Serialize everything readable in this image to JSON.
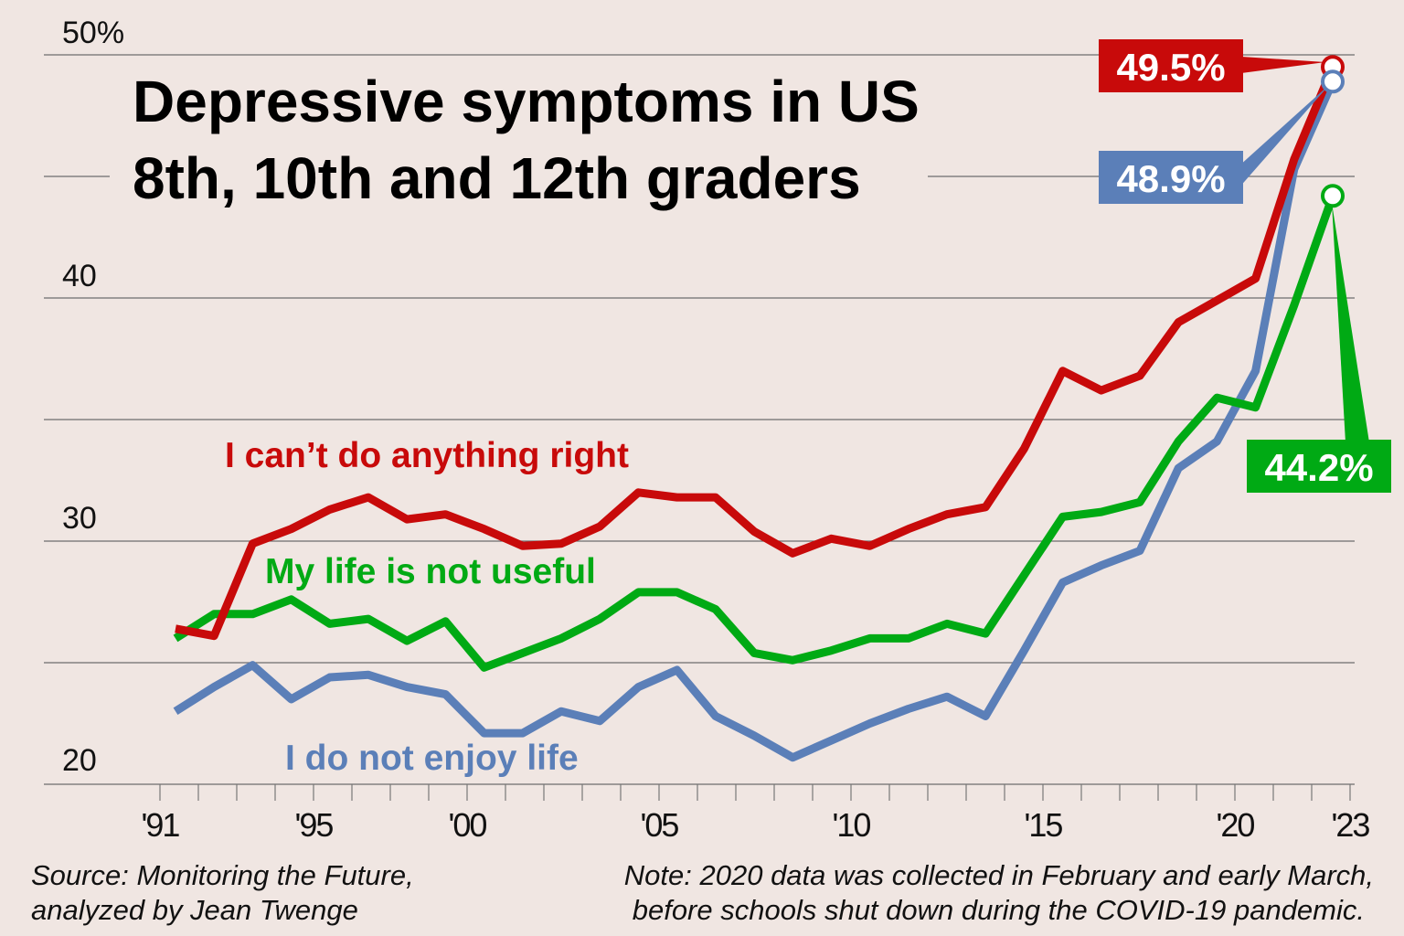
{
  "chart_data": {
    "type": "line",
    "title": "Depressive symptoms in US 8th, 10th and 12th graders",
    "title_lines": [
      "Depressive symptoms in US",
      "8th, 10th and 12th graders"
    ],
    "xlabel": "",
    "ylabel": "",
    "ylim": [
      20,
      50
    ],
    "y_ticks": [
      {
        "value": 50,
        "label": "50%"
      },
      {
        "value": 40,
        "label": "40"
      },
      {
        "value": 30,
        "label": "30"
      },
      {
        "value": 20,
        "label": "20"
      }
    ],
    "y_gridlines": [
      50,
      45,
      40,
      35,
      30,
      25,
      20
    ],
    "x_tick_labels": [
      "'91",
      "'95",
      "'00",
      "'05",
      "'10",
      "'15",
      "'20",
      "'23"
    ],
    "x": [
      1991,
      1992,
      1993,
      1994,
      1995,
      1996,
      1997,
      1998,
      1999,
      2000,
      2001,
      2002,
      2003,
      2004,
      2005,
      2006,
      2007,
      2008,
      2009,
      2010,
      2011,
      2012,
      2013,
      2014,
      2015,
      2016,
      2017,
      2018,
      2019,
      2020,
      2023
    ],
    "grid": true,
    "series": [
      {
        "name": "I can’t do anything right",
        "color": "#c80a0a",
        "values": [
          26.4,
          26.1,
          29.9,
          30.5,
          31.3,
          31.8,
          30.9,
          31.1,
          30.5,
          29.8,
          29.9,
          30.6,
          32.0,
          31.8,
          31.8,
          30.4,
          29.5,
          30.1,
          29.8,
          30.5,
          31.1,
          31.4,
          33.8,
          37.0,
          36.2,
          36.8,
          39.0,
          39.9,
          40.8,
          45.7,
          49.5
        ],
        "end_label": "49.5%"
      },
      {
        "name": "My life is not useful",
        "color": "#00aa14",
        "values": [
          26.0,
          27.0,
          27.0,
          27.6,
          26.6,
          26.8,
          25.9,
          26.7,
          24.8,
          25.4,
          26.0,
          26.8,
          27.9,
          27.9,
          27.2,
          25.4,
          25.1,
          25.5,
          26.0,
          26.0,
          26.6,
          26.2,
          28.6,
          31.0,
          31.2,
          31.6,
          34.1,
          35.9,
          35.5,
          39.7,
          44.2
        ],
        "end_label": "44.2%"
      },
      {
        "name": "I do not enjoy life",
        "color": "#5b7fb8",
        "values": [
          23.0,
          24.0,
          24.9,
          23.5,
          24.4,
          24.5,
          24.0,
          23.7,
          22.1,
          22.1,
          23.0,
          22.6,
          24.0,
          24.7,
          22.8,
          22.0,
          21.1,
          21.8,
          22.5,
          23.1,
          23.6,
          22.8,
          25.5,
          28.3,
          29.0,
          29.6,
          33.0,
          34.1,
          37.0,
          45.3,
          48.9
        ],
        "end_label": "48.9%"
      }
    ],
    "legend": "inline labels"
  },
  "footer": {
    "source_lines": [
      "Source: Monitoring the Future,",
      "analyzed by Jean Twenge"
    ],
    "note_lines": [
      "Note: 2020 data was collected in February and early March,",
      "before schools shut down during the COVID-19 pandemic."
    ]
  },
  "colors": {
    "background": "#f0e6e2",
    "gridline": "#6e6e6e"
  }
}
